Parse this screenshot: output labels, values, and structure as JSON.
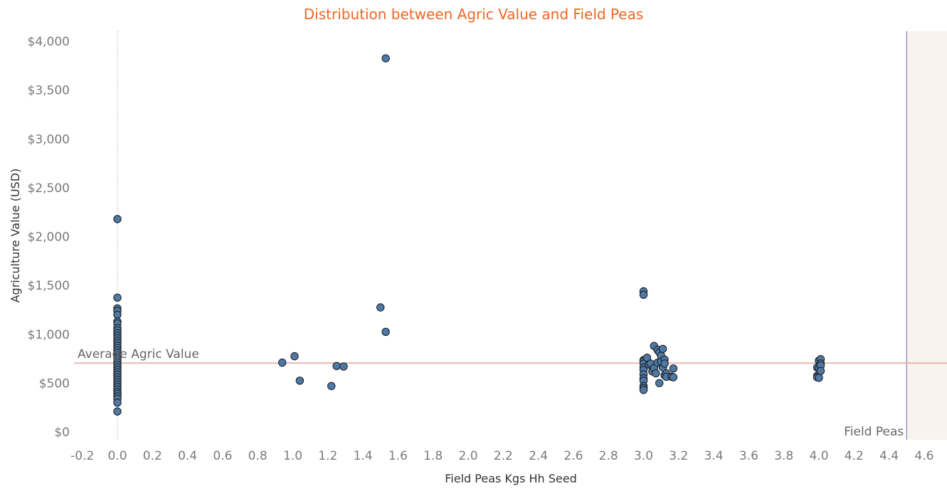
{
  "chart_data": {
    "type": "scatter",
    "title": "Distribution between Agric Value and Field Peas",
    "xlabel": "Field Peas Kgs Hh Seed",
    "ylabel": "Agriculture Value (USD)",
    "xlim": [
      -0.25,
      4.7
    ],
    "ylim": [
      -100,
      4100
    ],
    "x_ticks": [
      "-0.2",
      "0.0",
      "0.2",
      "0.4",
      "0.6",
      "0.8",
      "1.0",
      "1.2",
      "1.4",
      "1.6",
      "1.8",
      "2.0",
      "2.2",
      "2.4",
      "2.6",
      "2.8",
      "3.0",
      "3.2",
      "3.4",
      "3.6",
      "3.8",
      "4.0",
      "4.2",
      "4.4",
      "4.6"
    ],
    "y_ticks": [
      {
        "value": 0,
        "label": "$0"
      },
      {
        "value": 500,
        "label": "$500"
      },
      {
        "value": 1000,
        "label": "$1,000"
      },
      {
        "value": 1500,
        "label": "$1,500"
      },
      {
        "value": 2000,
        "label": "$2,000"
      },
      {
        "value": 2500,
        "label": "$2,500"
      },
      {
        "value": 3000,
        "label": "$3,000"
      },
      {
        "value": 3500,
        "label": "$3,500"
      },
      {
        "value": 4000,
        "label": "$4,000"
      }
    ],
    "reference_line": {
      "label": "Average Agric Value",
      "value": 705,
      "color": "#e8a49c"
    },
    "band": {
      "label": "Field Peas",
      "from": 4.5,
      "to": 4.7,
      "color": "#f9f3ef",
      "edge_color": "#9b97c7"
    },
    "zero_line": {
      "value": 0,
      "style": "dotted"
    },
    "marker_color": "#4e79a7",
    "marker_edge": "#1a1a1a",
    "grid": false,
    "series": [
      {
        "points": [
          [
            0.0,
            2180
          ],
          [
            0.0,
            1375
          ],
          [
            0.0,
            1265
          ],
          [
            0.0,
            1240
          ],
          [
            0.0,
            1200
          ],
          [
            0.0,
            1130
          ],
          [
            0.0,
            1110
          ],
          [
            0.0,
            1065
          ],
          [
            0.0,
            1040
          ],
          [
            0.0,
            1010
          ],
          [
            0.0,
            985
          ],
          [
            0.0,
            960
          ],
          [
            0.0,
            935
          ],
          [
            0.0,
            910
          ],
          [
            0.0,
            885
          ],
          [
            0.0,
            860
          ],
          [
            0.0,
            835
          ],
          [
            0.0,
            810
          ],
          [
            0.0,
            785
          ],
          [
            0.0,
            760
          ],
          [
            0.0,
            735
          ],
          [
            0.0,
            710
          ],
          [
            0.0,
            685
          ],
          [
            0.0,
            660
          ],
          [
            0.0,
            635
          ],
          [
            0.0,
            610
          ],
          [
            0.0,
            585
          ],
          [
            0.0,
            560
          ],
          [
            0.0,
            535
          ],
          [
            0.0,
            510
          ],
          [
            0.0,
            485
          ],
          [
            0.0,
            460
          ],
          [
            0.0,
            435
          ],
          [
            0.0,
            410
          ],
          [
            0.0,
            390
          ],
          [
            0.0,
            365
          ],
          [
            0.0,
            340
          ],
          [
            0.0,
            300
          ],
          [
            0.0,
            210
          ],
          [
            0.94,
            710
          ],
          [
            1.01,
            775
          ],
          [
            1.04,
            525
          ],
          [
            1.22,
            470
          ],
          [
            1.25,
            675
          ],
          [
            1.29,
            670
          ],
          [
            1.5,
            1275
          ],
          [
            1.53,
            3825
          ],
          [
            1.53,
            1025
          ],
          [
            3.0,
            1440
          ],
          [
            3.0,
            1405
          ],
          [
            3.0,
            735
          ],
          [
            3.0,
            725
          ],
          [
            3.0,
            700
          ],
          [
            3.0,
            660
          ],
          [
            3.0,
            635
          ],
          [
            3.0,
            590
          ],
          [
            3.0,
            550
          ],
          [
            3.0,
            525
          ],
          [
            3.0,
            470
          ],
          [
            3.0,
            450
          ],
          [
            3.0,
            430
          ],
          [
            3.02,
            760
          ],
          [
            3.03,
            690
          ],
          [
            3.04,
            700
          ],
          [
            3.05,
            620
          ],
          [
            3.06,
            880
          ],
          [
            3.06,
            655
          ],
          [
            3.07,
            600
          ],
          [
            3.08,
            710
          ],
          [
            3.08,
            840
          ],
          [
            3.09,
            500
          ],
          [
            3.09,
            815
          ],
          [
            3.1,
            780
          ],
          [
            3.1,
            720
          ],
          [
            3.11,
            850
          ],
          [
            3.11,
            660
          ],
          [
            3.12,
            740
          ],
          [
            3.12,
            700
          ],
          [
            3.12,
            580
          ],
          [
            3.13,
            600
          ],
          [
            3.13,
            565
          ],
          [
            3.16,
            565
          ],
          [
            3.17,
            650
          ],
          [
            3.17,
            560
          ],
          [
            3.99,
            575
          ],
          [
            3.99,
            560
          ],
          [
            3.99,
            660
          ],
          [
            4.0,
            730
          ],
          [
            4.0,
            650
          ],
          [
            4.0,
            555
          ],
          [
            4.01,
            745
          ],
          [
            4.01,
            700
          ],
          [
            4.01,
            680
          ],
          [
            4.01,
            625
          ]
        ]
      }
    ]
  }
}
